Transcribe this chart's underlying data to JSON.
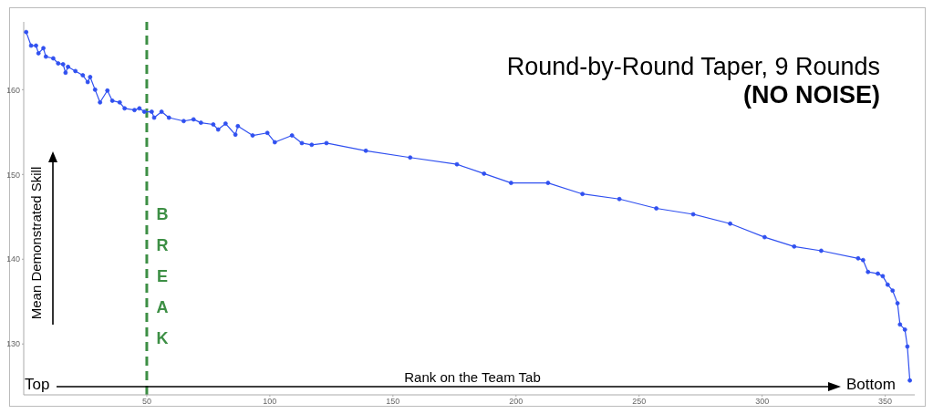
{
  "chart_data": {
    "type": "line",
    "title": "Round-by-Round Taper, 9 Rounds",
    "subtitle": "(NO NOISE)",
    "xlabel": "Rank on the Team Tab",
    "ylabel": "Mean Demonstrated Skill",
    "annotations": [
      "Top",
      "Bottom"
    ],
    "xlim": [
      0,
      362
    ],
    "xticks": [
      50,
      100,
      150,
      200,
      250,
      300,
      350
    ],
    "ylim": [
      124,
      168
    ],
    "yticks": [
      130,
      140,
      150,
      160
    ],
    "marker": "circle",
    "line_style": "solid",
    "ref_lines": [
      {
        "axis": "x",
        "value": 50,
        "label": "BREAK",
        "color": "#3d8f45",
        "line_style": "dashed"
      }
    ],
    "series": [
      {
        "color": "#3050f0",
        "x": [
          1,
          3,
          5,
          6,
          8,
          9,
          12,
          14,
          16,
          17,
          18,
          21,
          24,
          26,
          27,
          29,
          31,
          34,
          36,
          39,
          41,
          45,
          47,
          49,
          52,
          53,
          56,
          59,
          65,
          69,
          72,
          77,
          79,
          82,
          86,
          87,
          93,
          99,
          102,
          109,
          113,
          117,
          123,
          139,
          157,
          176,
          187,
          198,
          213,
          227,
          242,
          257,
          272,
          287,
          301,
          313,
          324,
          339,
          341,
          343,
          347,
          349,
          351,
          353,
          355,
          356,
          358,
          359,
          360
        ],
        "values": [
          166.8,
          165.2,
          165.2,
          164.3,
          164.9,
          163.9,
          163.7,
          163.1,
          163.0,
          162.0,
          162.7,
          162.2,
          161.7,
          160.9,
          161.5,
          160.0,
          158.5,
          159.9,
          158.7,
          158.5,
          157.8,
          157.6,
          157.8,
          157.4,
          157.4,
          156.7,
          157.4,
          156.7,
          156.3,
          156.5,
          156.1,
          155.9,
          155.3,
          156.0,
          154.7,
          155.7,
          154.6,
          154.9,
          153.8,
          154.6,
          153.7,
          153.5,
          153.7,
          152.8,
          152.0,
          151.2,
          150.1,
          149.0,
          149.0,
          147.7,
          147.1,
          146.0,
          145.3,
          144.2,
          142.6,
          141.5,
          141.0,
          140.1,
          139.9,
          138.5,
          138.3,
          138.0,
          137.0,
          136.3,
          134.8,
          132.3,
          131.7,
          129.7,
          125.7
        ]
      }
    ]
  }
}
